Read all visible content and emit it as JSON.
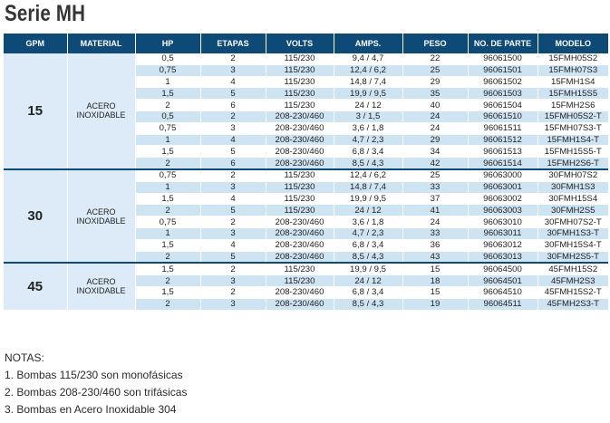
{
  "title": "Serie MH",
  "headers": [
    "GPM",
    "MATERIAL",
    "HP",
    "ETAPAS",
    "VOLTS",
    "AMPS.",
    "PESO",
    "NO. DE PARTE",
    "MODELO"
  ],
  "groups": [
    {
      "gpm": "15",
      "material": "ACERO INOXIDABLE",
      "rows": [
        {
          "hp": "0,5",
          "etapas": "2",
          "volts": "115/230",
          "amps": "9,4 / 4,7",
          "peso": "22",
          "parte": "96061500",
          "modelo": "15FMH05S2"
        },
        {
          "hp": "0,75",
          "etapas": "3",
          "volts": "115/230",
          "amps": "12,4 / 6,2",
          "peso": "25",
          "parte": "96061501",
          "modelo": "15FMH07S3"
        },
        {
          "hp": "1",
          "etapas": "4",
          "volts": "115/230",
          "amps": "14,8 / 7,4",
          "peso": "29",
          "parte": "96061502",
          "modelo": "15FMH1S4"
        },
        {
          "hp": "1,5",
          "etapas": "5",
          "volts": "115/230",
          "amps": "19,9 / 9,5",
          "peso": "35",
          "parte": "96061503",
          "modelo": "15FMH15S5"
        },
        {
          "hp": "2",
          "etapas": "6",
          "volts": "115/230",
          "amps": "24 / 12",
          "peso": "40",
          "parte": "96061504",
          "modelo": "15FMH2S6"
        },
        {
          "hp": "0,5",
          "etapas": "2",
          "volts": "208-230/460",
          "amps": "3 / 1,5",
          "peso": "24",
          "parte": "96061510",
          "modelo": "15FMH05S2-T"
        },
        {
          "hp": "0,75",
          "etapas": "3",
          "volts": "208-230/460",
          "amps": "3,6 / 1,8",
          "peso": "24",
          "parte": "96061511",
          "modelo": "15FMH07S3-T"
        },
        {
          "hp": "1",
          "etapas": "4",
          "volts": "208-230/460",
          "amps": "4,7 / 2,3",
          "peso": "29",
          "parte": "96061512",
          "modelo": "15FMH1S4-T"
        },
        {
          "hp": "1,5",
          "etapas": "5",
          "volts": "208-230/460",
          "amps": "6,8 / 3,4",
          "peso": "34",
          "parte": "96061513",
          "modelo": "15FMH15S5-T"
        },
        {
          "hp": "2",
          "etapas": "6",
          "volts": "208-230/460",
          "amps": "8,5 / 4,3",
          "peso": "42",
          "parte": "96061514",
          "modelo": "15FMH2S6-T"
        }
      ]
    },
    {
      "gpm": "30",
      "material": "ACERO INOXIDABLE",
      "rows": [
        {
          "hp": "0,75",
          "etapas": "2",
          "volts": "115/230",
          "amps": "12,4 / 6,2",
          "peso": "25",
          "parte": "96063000",
          "modelo": "30FMH07S2"
        },
        {
          "hp": "1",
          "etapas": "3",
          "volts": "115/230",
          "amps": "14,8 / 7,4",
          "peso": "33",
          "parte": "96063001",
          "modelo": "30FMH1S3"
        },
        {
          "hp": "1,5",
          "etapas": "4",
          "volts": "115/230",
          "amps": "19,9 / 9,5",
          "peso": "37",
          "parte": "96063002",
          "modelo": "30FMH15S4"
        },
        {
          "hp": "2",
          "etapas": "5",
          "volts": "115/230",
          "amps": "24 / 12",
          "peso": "41",
          "parte": "96063003",
          "modelo": "30FMH2S5"
        },
        {
          "hp": "0,75",
          "etapas": "2",
          "volts": "208-230/460",
          "amps": "3,6 / 1,8",
          "peso": "24",
          "parte": "96063010",
          "modelo": "30FMH07S2-T"
        },
        {
          "hp": "1",
          "etapas": "3",
          "volts": "208-230/460",
          "amps": "4,7 / 2,3",
          "peso": "33",
          "parte": "96063011",
          "modelo": "30FMH1S3-T"
        },
        {
          "hp": "1,5",
          "etapas": "4",
          "volts": "208-230/460",
          "amps": "6,8 / 3,4",
          "peso": "36",
          "parte": "96063012",
          "modelo": "30FMH15S4-T"
        },
        {
          "hp": "2",
          "etapas": "5",
          "volts": "208-230/460",
          "amps": "8,5 / 4,3",
          "peso": "43",
          "parte": "96063013",
          "modelo": "30FMH2S5-T"
        }
      ]
    },
    {
      "gpm": "45",
      "material": "ACERO INOXIDABLE",
      "rows": [
        {
          "hp": "1,5",
          "etapas": "2",
          "volts": "115/230",
          "amps": "19,9 / 9,5",
          "peso": "15",
          "parte": "96064500",
          "modelo": "45FMH15S2"
        },
        {
          "hp": "2",
          "etapas": "3",
          "volts": "115/230",
          "amps": "24 / 12",
          "peso": "18",
          "parte": "96064501",
          "modelo": "45FMH2S3"
        },
        {
          "hp": "1,5",
          "etapas": "2",
          "volts": "208-230/460",
          "amps": "6,8 / 3,4",
          "peso": "15",
          "parte": "96064510",
          "modelo": "45FMH15S2-T"
        },
        {
          "hp": "2",
          "etapas": "3",
          "volts": "208-230/460",
          "amps": "8,5 / 4,3",
          "peso": "19",
          "parte": "96064511",
          "modelo": "45FMH2S3-T"
        }
      ]
    }
  ],
  "notes": {
    "heading": "NOTAS:",
    "items": [
      "1. Bombas 115/230 son monofásicas",
      "2. Bombas 208-230/460 son trifásicas",
      "3. Bombas en Acero Inoxidable 304"
    ]
  }
}
